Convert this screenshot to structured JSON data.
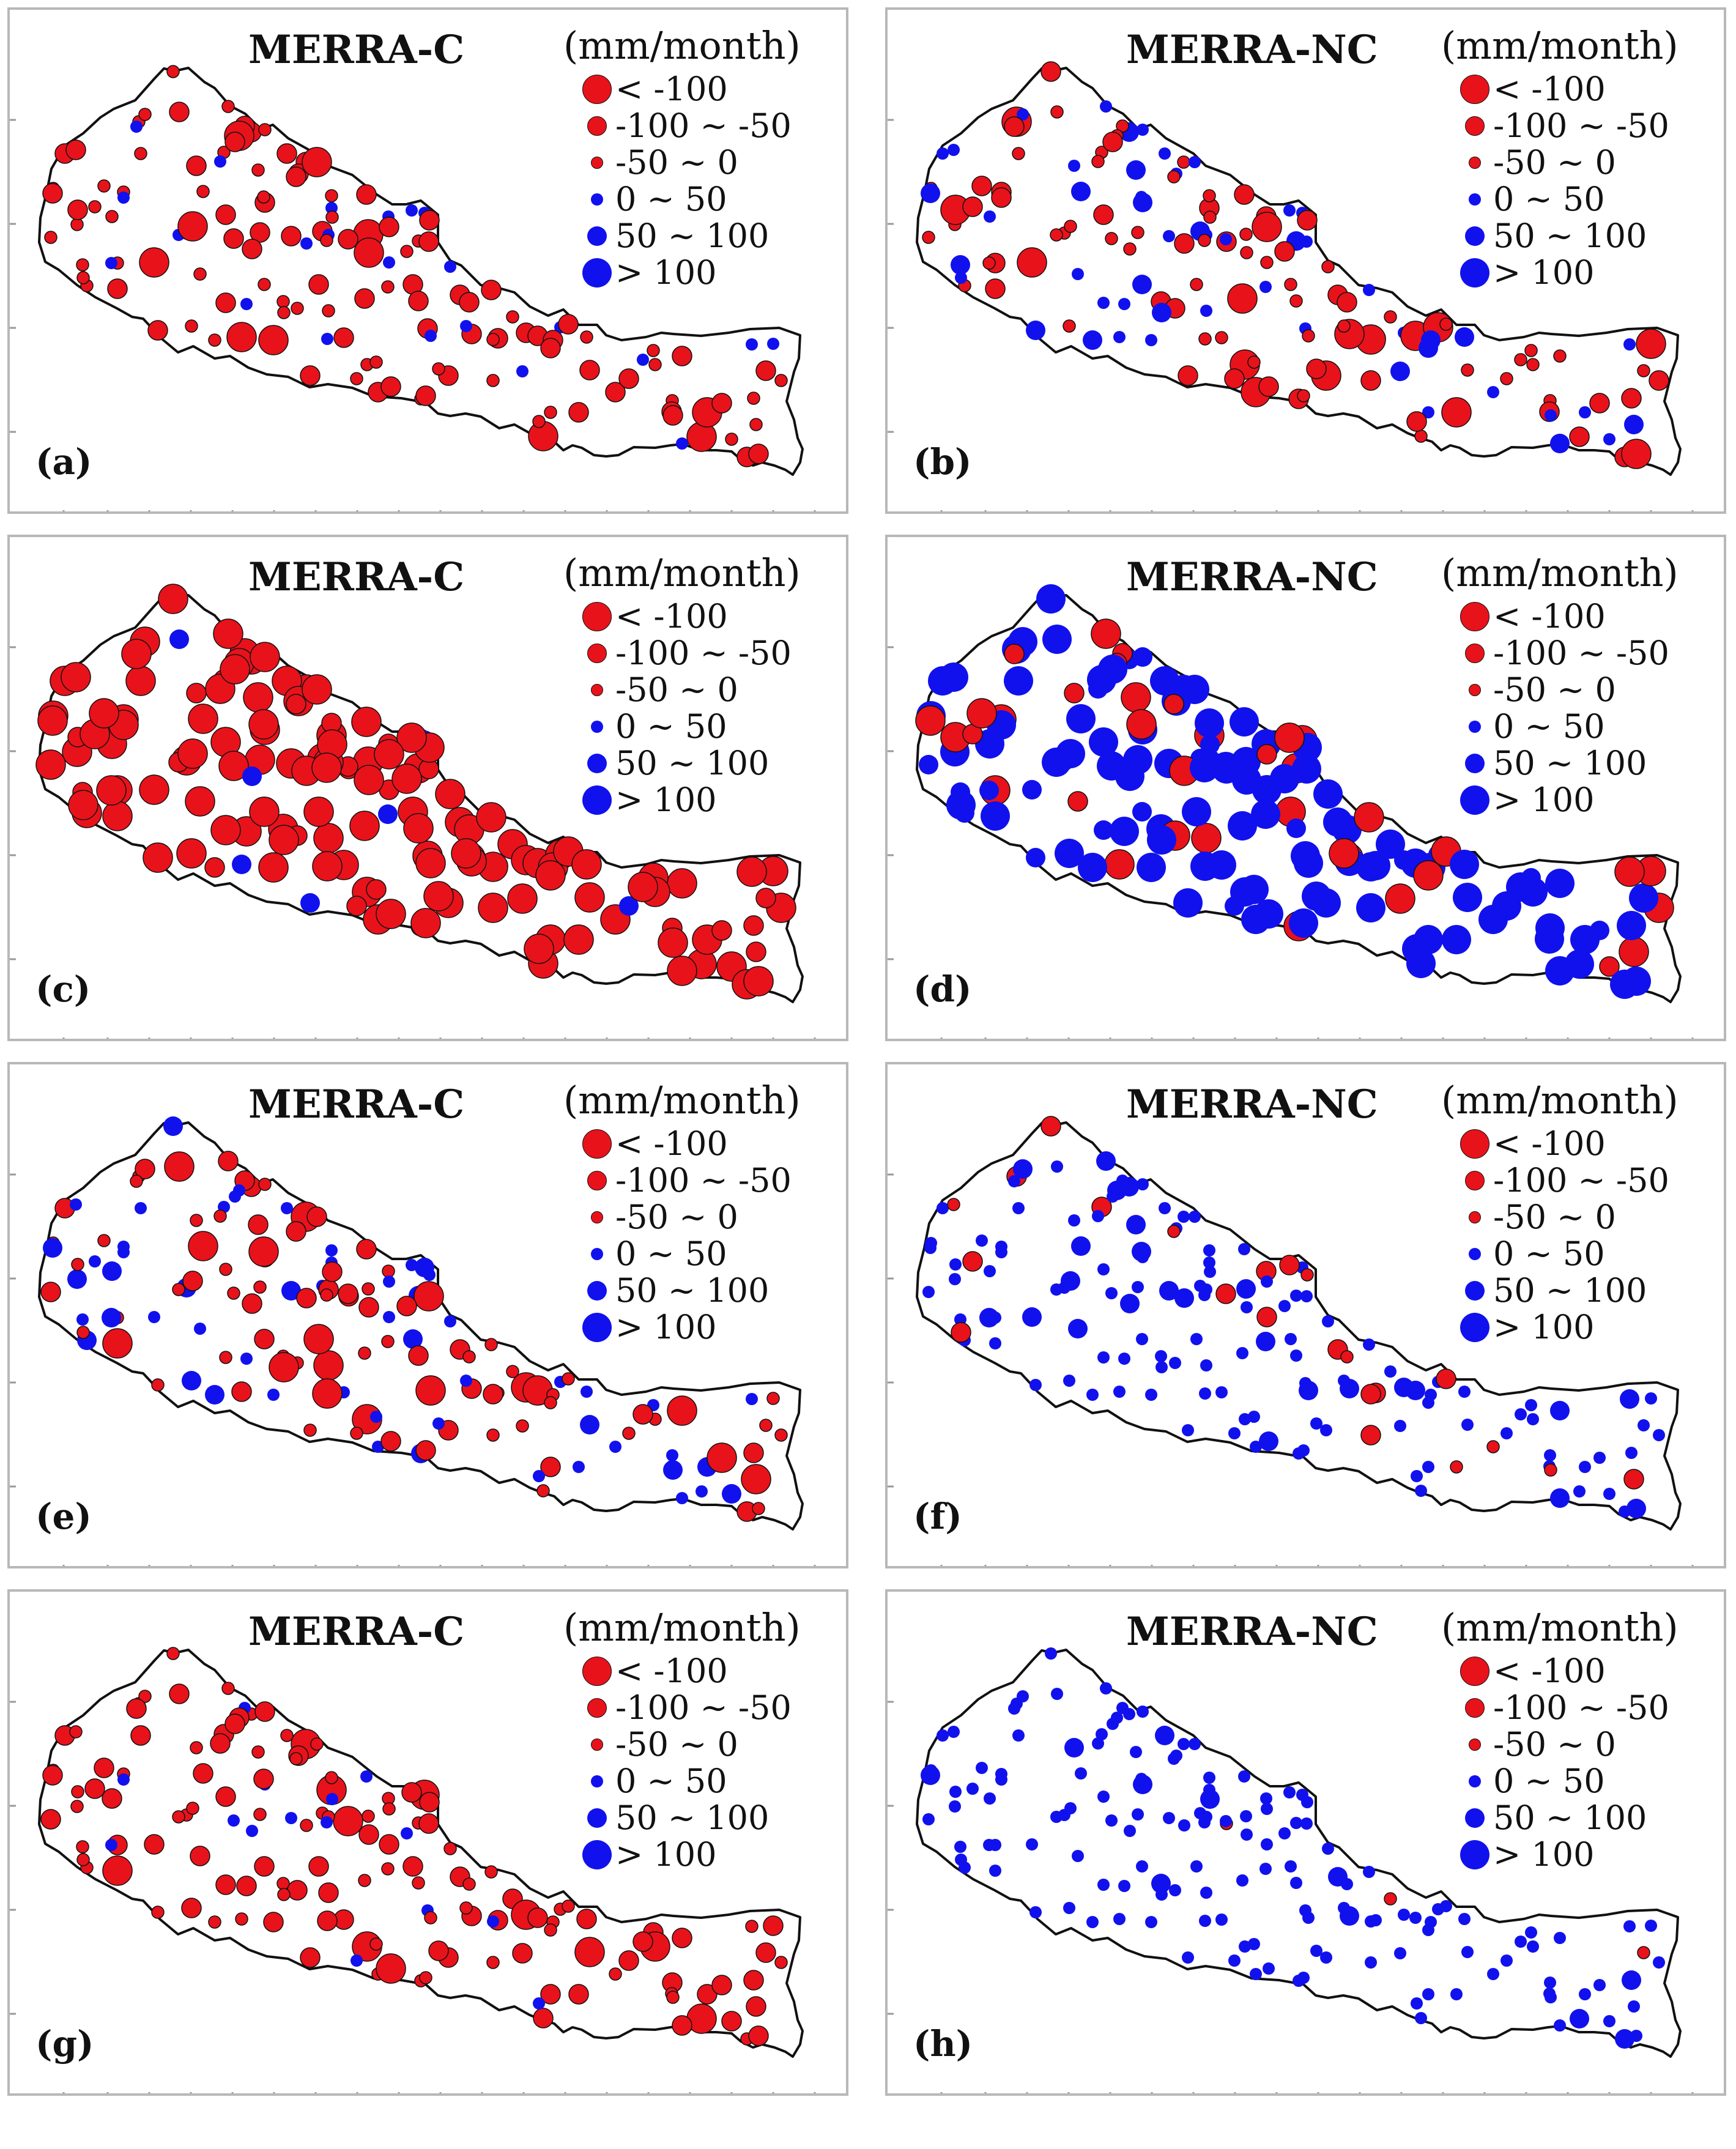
{
  "figure": {
    "units": "(mm/month)",
    "colors": {
      "negative": "#e8121b",
      "positive": "#1111ee",
      "outline": "#111111",
      "frame": "#b8b8b8"
    },
    "legend": [
      {
        "label": "< -100",
        "color": "negative",
        "size": 3
      },
      {
        "label": "-100 ~ -50",
        "color": "negative",
        "size": 2
      },
      {
        "label": "-50 ~ 0",
        "color": "negative",
        "size": 1
      },
      {
        "label": "0 ~ 50",
        "color": "positive",
        "size": 1
      },
      {
        "label": "50 ~ 100",
        "color": "positive",
        "size": 2
      },
      {
        "label": "> 100",
        "color": "positive",
        "size": 3
      }
    ],
    "panels": [
      {
        "id": "a",
        "label": "(a)",
        "title": "MERRA-C",
        "pattern": "mostly-negative-small"
      },
      {
        "id": "b",
        "label": "(b)",
        "title": "MERRA-NC",
        "pattern": "mixed-small"
      },
      {
        "id": "c",
        "label": "(c)",
        "title": "MERRA-C",
        "pattern": "negative-large"
      },
      {
        "id": "d",
        "label": "(d)",
        "title": "MERRA-NC",
        "pattern": "positive-large"
      },
      {
        "id": "e",
        "label": "(e)",
        "title": "MERRA-C",
        "pattern": "mixed-small"
      },
      {
        "id": "f",
        "label": "(f)",
        "title": "MERRA-NC",
        "pattern": "mostly-positive-small"
      },
      {
        "id": "g",
        "label": "(g)",
        "title": "MERRA-C",
        "pattern": "mostly-negative-small"
      },
      {
        "id": "h",
        "label": "(h)",
        "title": "MERRA-NC",
        "pattern": "positive-small"
      }
    ]
  }
}
